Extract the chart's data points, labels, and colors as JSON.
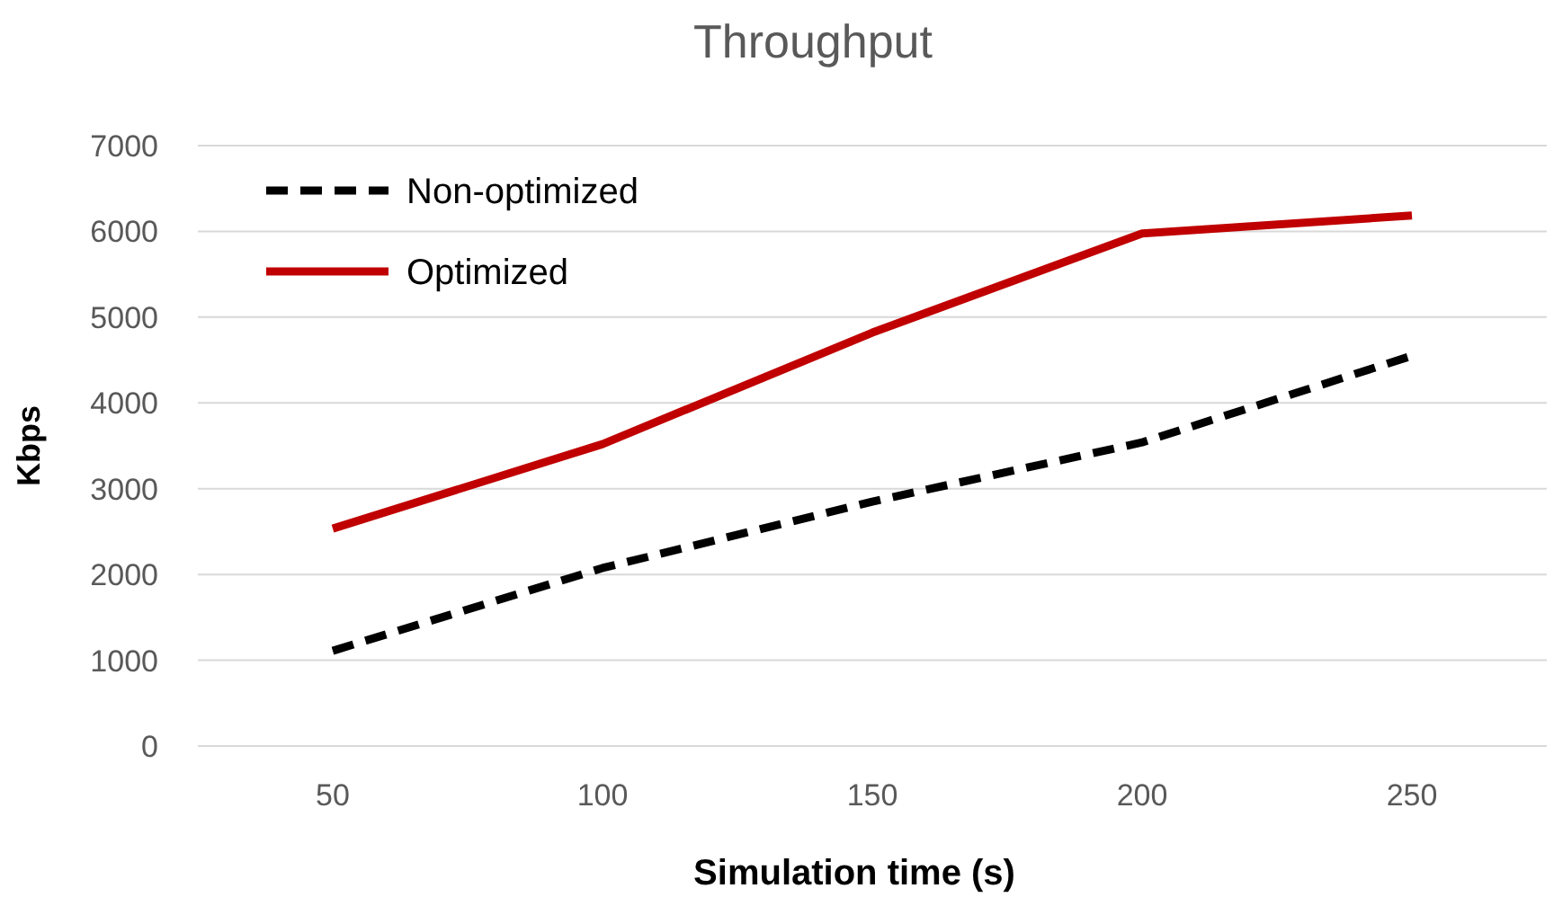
{
  "chart_data": {
    "type": "line",
    "title": "Throughput",
    "xlabel": "Simulation time (s)",
    "ylabel": "Kbps",
    "categories": [
      "50",
      "100",
      "150",
      "200",
      "250"
    ],
    "series": [
      {
        "name": "Non-optimized",
        "color": "#000000",
        "line_style": "dashed",
        "values": [
          1110,
          2075,
          2850,
          3540,
          4550
        ]
      },
      {
        "name": "Optimized",
        "color": "#c00000",
        "line_style": "solid",
        "values": [
          2535,
          3520,
          4820,
          5975,
          6185
        ]
      }
    ],
    "ylim": [
      0,
      7000
    ],
    "yticks": [
      0,
      1000,
      2000,
      3000,
      4000,
      5000,
      6000,
      7000
    ],
    "grid": "y",
    "legend": "top left",
    "marker": "none"
  }
}
